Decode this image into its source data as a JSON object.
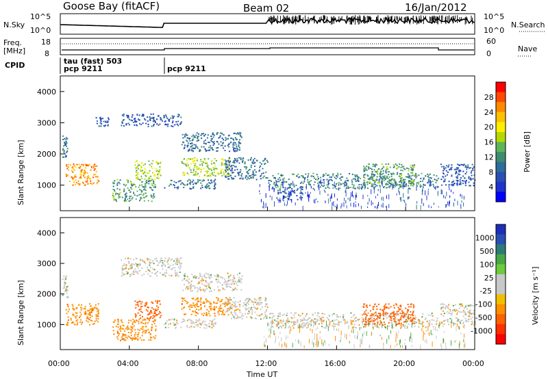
{
  "header": {
    "station": "Goose Bay (fitACF)",
    "beam": "Beam 02",
    "date": "16/Jan/2012"
  },
  "panels": {
    "nsky": {
      "left_label": "N.Sky",
      "right_label": "N.Search",
      "left_ticks": [
        "10^5",
        "10^0"
      ],
      "right_ticks": [
        "10^5",
        "10^0"
      ]
    },
    "freq": {
      "left_label_1": "Freq.",
      "left_label_2": "[MHz]",
      "right_label": "Nave",
      "left_ticks": [
        "18",
        "8"
      ],
      "right_ticks": [
        "60",
        "0"
      ]
    },
    "cpid": {
      "label": "CPID",
      "entries": [
        {
          "text_1": "tau (fast) 503",
          "text_2": "pcp 9211"
        },
        {
          "text_1": "",
          "text_2": "pcp 9211"
        }
      ]
    }
  },
  "power_panel": {
    "ylabel": "Slant Range [km]",
    "yticks": [
      "1000",
      "2000",
      "3000",
      "4000"
    ],
    "colorbar_label": "Power [dB]",
    "colorbar_ticks": [
      "28",
      "24",
      "20",
      "16",
      "12",
      "8",
      "4"
    ],
    "colorbar_colors": [
      "#ff0000",
      "#ff4a00",
      "#ff8a00",
      "#ffc000",
      "#ffee00",
      "#b4d800",
      "#5fb45a",
      "#3e8c6e",
      "#2e6e9a",
      "#2a4fb3",
      "#1f33cf",
      "#0000ff"
    ]
  },
  "velocity_panel": {
    "ylabel": "Slant Range [km]",
    "yticks": [
      "1000",
      "2000",
      "3000",
      "4000"
    ],
    "colorbar_label": "Velocity [m s⁻¹]",
    "colorbar_ticks": [
      "1000",
      "500",
      "100",
      "25",
      "-25",
      "-100",
      "-500",
      "-1000"
    ],
    "colorbar_colors": [
      "#1c2fb8",
      "#2a4fb3",
      "#2e7a76",
      "#48a848",
      "#6ccc3c",
      "#c8c8c8",
      "#c8c8c8",
      "#f0c000",
      "#ff9000",
      "#ff6000",
      "#ff3000",
      "#ff0000"
    ]
  },
  "xaxis": {
    "label": "Time UT",
    "ticks": [
      "00:00",
      "04:00",
      "08:00",
      "12:00",
      "16:00",
      "20:00",
      "00:00"
    ]
  },
  "chart_data": [
    {
      "type": "heatmap",
      "name": "Power [dB]",
      "x_range_hours": [
        0,
        24
      ],
      "y_range_km": [
        180,
        4500
      ],
      "value_range_db": [
        0,
        30
      ],
      "regions": [
        {
          "t0": 0.1,
          "t1": 0.4,
          "r0": 1900,
          "r1": 2700,
          "value": 8
        },
        {
          "t0": 0.3,
          "t1": 2.2,
          "r0": 1000,
          "r1": 1700,
          "value": 24
        },
        {
          "t0": 2.0,
          "t1": 2.8,
          "r0": 2900,
          "r1": 3200,
          "value": 6
        },
        {
          "t0": 3.0,
          "t1": 5.5,
          "r0": 500,
          "r1": 1200,
          "value": 12
        },
        {
          "t0": 3.5,
          "t1": 7.0,
          "r0": 2900,
          "r1": 3300,
          "value": 6
        },
        {
          "t0": 4.3,
          "t1": 5.8,
          "r0": 1200,
          "r1": 1800,
          "value": 16
        },
        {
          "t0": 6.0,
          "t1": 9.0,
          "r0": 900,
          "r1": 1200,
          "value": 8
        },
        {
          "t0": 7.0,
          "t1": 10.5,
          "r0": 2100,
          "r1": 2700,
          "value": 8
        },
        {
          "t0": 7.0,
          "t1": 9.8,
          "r0": 1300,
          "r1": 1900,
          "value": 16
        },
        {
          "t0": 9.5,
          "t1": 12.0,
          "r0": 1200,
          "r1": 1900,
          "value": 8
        },
        {
          "t0": 12.0,
          "t1": 22.0,
          "r0": 900,
          "r1": 1400,
          "value": 10
        },
        {
          "t0": 12.5,
          "t1": 14.0,
          "r0": 550,
          "r1": 900,
          "value": 6
        },
        {
          "t0": 17.5,
          "t1": 20.5,
          "r0": 1000,
          "r1": 1700,
          "value": 12
        },
        {
          "t0": 22.0,
          "t1": 24.0,
          "r0": 1000,
          "r1": 1700,
          "value": 6
        }
      ]
    },
    {
      "type": "heatmap",
      "name": "Velocity [m s⁻¹]",
      "x_range_hours": [
        0,
        24
      ],
      "y_range_km": [
        180,
        4500
      ],
      "value_range_ms": [
        -1000,
        1000
      ],
      "regions": [
        {
          "t0": 0.1,
          "t1": 0.4,
          "r0": 1900,
          "r1": 2700,
          "value": 0
        },
        {
          "t0": 0.3,
          "t1": 2.2,
          "r0": 1000,
          "r1": 1700,
          "value": -100
        },
        {
          "t0": 3.0,
          "t1": 5.5,
          "r0": 500,
          "r1": 1200,
          "value": -100
        },
        {
          "t0": 3.5,
          "t1": 7.0,
          "r0": 2600,
          "r1": 3200,
          "value": 0
        },
        {
          "t0": 4.3,
          "t1": 5.8,
          "r0": 1200,
          "r1": 1800,
          "value": -300
        },
        {
          "t0": 6.0,
          "t1": 9.0,
          "r0": 900,
          "r1": 1200,
          "value": 0
        },
        {
          "t0": 7.0,
          "t1": 10.5,
          "r0": 2100,
          "r1": 2700,
          "value": 0
        },
        {
          "t0": 7.0,
          "t1": 9.8,
          "r0": 1300,
          "r1": 1900,
          "value": -100
        },
        {
          "t0": 9.5,
          "t1": 12.0,
          "r0": 1200,
          "r1": 1900,
          "value": 0
        },
        {
          "t0": 12.0,
          "t1": 22.0,
          "r0": 900,
          "r1": 1400,
          "value": 0
        },
        {
          "t0": 17.5,
          "t1": 20.5,
          "r0": 1000,
          "r1": 1700,
          "value": -300
        },
        {
          "t0": 22.0,
          "t1": 24.0,
          "r0": 1000,
          "r1": 1700,
          "value": 0
        }
      ]
    }
  ]
}
